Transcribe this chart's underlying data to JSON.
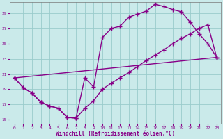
{
  "xlabel": "Windchill (Refroidissement éolien,°C)",
  "background_color": "#caeaea",
  "line_color": "#880088",
  "marker": "+",
  "markersize": 4,
  "linewidth": 1.0,
  "xlim": [
    -0.5,
    23.5
  ],
  "ylim": [
    14.5,
    30.5
  ],
  "xticks": [
    0,
    1,
    2,
    3,
    4,
    5,
    6,
    7,
    8,
    9,
    10,
    11,
    12,
    13,
    14,
    15,
    16,
    17,
    18,
    19,
    20,
    21,
    22,
    23
  ],
  "yticks": [
    15,
    17,
    19,
    21,
    23,
    25,
    27,
    29
  ],
  "grid_color": "#99cccc",
  "series1_x": [
    0,
    1,
    2,
    3,
    4,
    5,
    6,
    7,
    8,
    9,
    10,
    11,
    12,
    13,
    14,
    15,
    16,
    17,
    18,
    19,
    20,
    21,
    22,
    23
  ],
  "series1_y": [
    20.5,
    19.2,
    18.5,
    17.3,
    16.8,
    16.5,
    15.3,
    15.2,
    20.5,
    19.3,
    25.8,
    27.0,
    27.3,
    28.5,
    28.9,
    29.3,
    30.2,
    29.9,
    29.5,
    29.2,
    27.8,
    26.3,
    25.0,
    23.2
  ],
  "series2_x": [
    0,
    1,
    2,
    3,
    4,
    5,
    6,
    7,
    8,
    9,
    10,
    11,
    12,
    13,
    14,
    15,
    16,
    17,
    18,
    19,
    20,
    21,
    22,
    23
  ],
  "series2_y": [
    20.5,
    19.2,
    18.5,
    17.3,
    16.8,
    16.5,
    15.3,
    15.2,
    16.5,
    17.5,
    19.0,
    19.8,
    20.5,
    21.2,
    22.0,
    22.8,
    23.5,
    24.2,
    25.0,
    25.7,
    26.3,
    27.0,
    27.5,
    23.2
  ],
  "series3_x": [
    0,
    23
  ],
  "series3_y": [
    20.5,
    23.2
  ]
}
